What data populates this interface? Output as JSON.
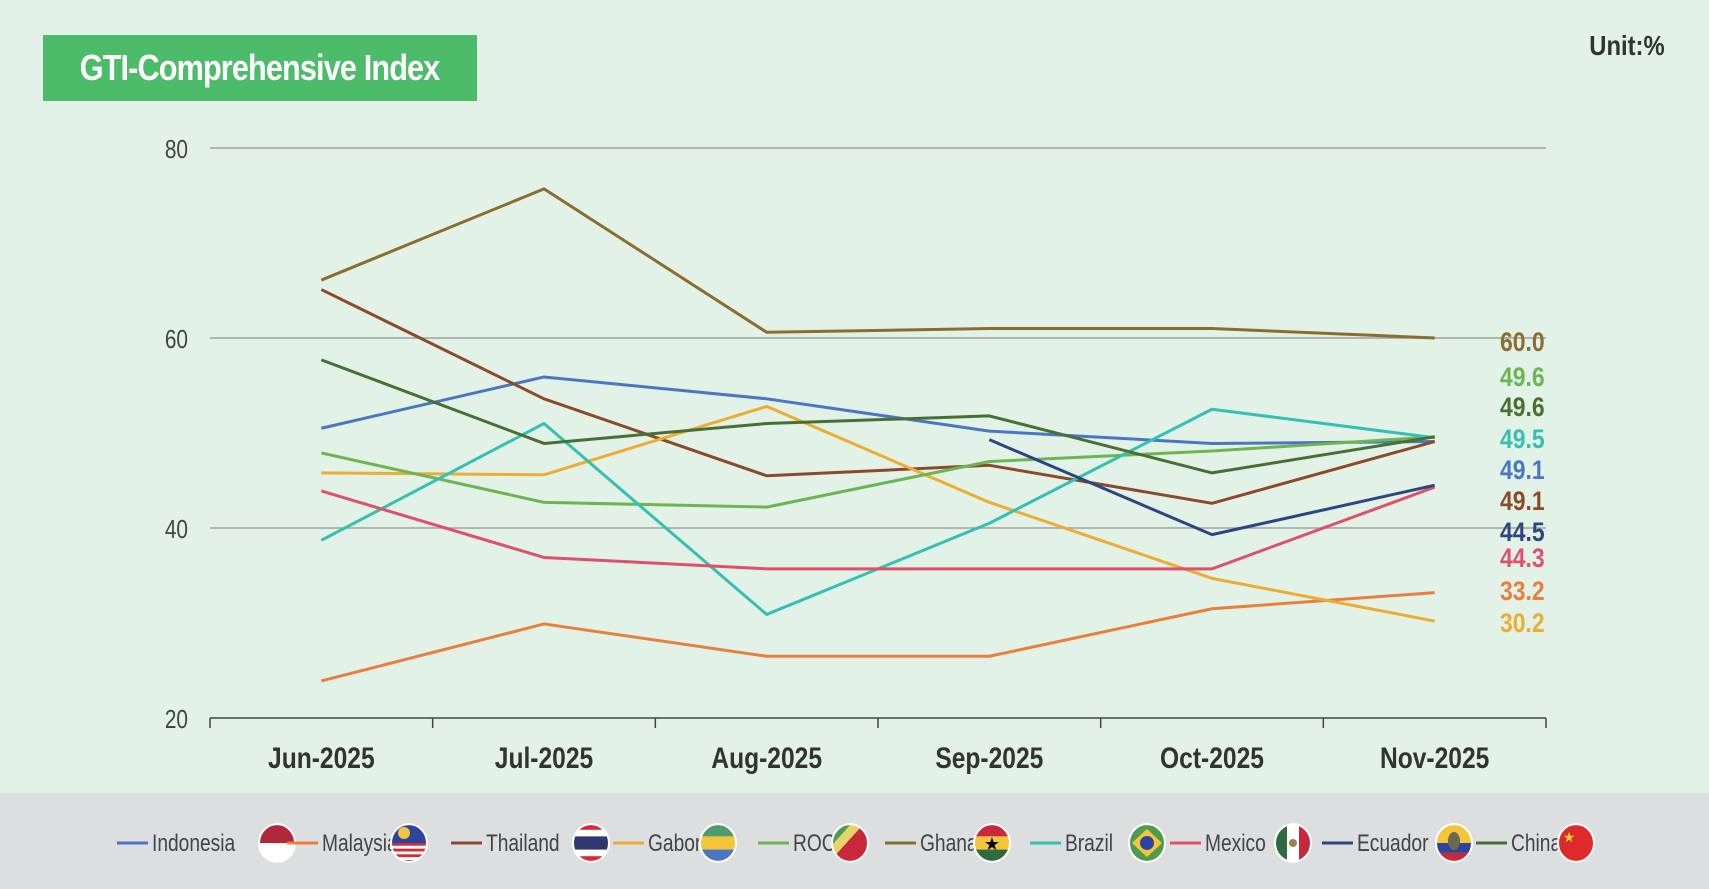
{
  "header": {
    "title": "GTI-Comprehensive Index",
    "unit": "Unit:%"
  },
  "chart_data": {
    "type": "line",
    "title": "GTI-Comprehensive Index",
    "ylabel": "Unit:%",
    "ylim": [
      20,
      80
    ],
    "yticks": [
      20,
      40,
      60,
      80
    ],
    "grid": true,
    "legend": "bottom",
    "categories": [
      "Jun-2025",
      "Jul-2025",
      "Aug-2025",
      "Sep-2025",
      "Oct-2025",
      "Nov-2025"
    ],
    "series": [
      {
        "name": "Indonesia",
        "color": "#4a76c4",
        "flag": "indonesia-flag",
        "values": [
          50.5,
          55.9,
          53.6,
          50.2,
          48.9,
          49.1
        ]
      },
      {
        "name": "Malaysia",
        "color": "#e97f3f",
        "flag": "malaysia-flag",
        "values": [
          23.9,
          29.9,
          26.5,
          26.5,
          31.5,
          33.2
        ]
      },
      {
        "name": "Thailand",
        "color": "#8b4a2b",
        "flag": "thailand-flag",
        "values": [
          65.1,
          53.6,
          45.5,
          46.6,
          42.6,
          49.1
        ]
      },
      {
        "name": "Gabon",
        "color": "#ebad33",
        "flag": "gabon-flag",
        "values": [
          45.8,
          45.6,
          52.8,
          42.7,
          34.7,
          30.2
        ]
      },
      {
        "name": "ROC",
        "color": "#6db553",
        "flag": "congo-flag",
        "values": [
          47.9,
          42.7,
          42.2,
          47.0,
          48.1,
          49.6
        ]
      },
      {
        "name": "Ghana",
        "color": "#8a6e30",
        "flag": "ghana-flag",
        "values": [
          66.1,
          75.7,
          60.6,
          61.0,
          61.0,
          60.0
        ]
      },
      {
        "name": "Brazil",
        "color": "#36bfb3",
        "flag": "brazil-flag",
        "values": [
          38.7,
          51.0,
          30.9,
          40.5,
          52.5,
          49.5
        ]
      },
      {
        "name": "Mexico",
        "color": "#e0506a",
        "flag": "mexico-flag",
        "values": [
          43.9,
          36.9,
          35.7,
          35.7,
          35.7,
          44.3
        ]
      },
      {
        "name": "Ecuador",
        "color": "#2c4583",
        "flag": "ecuador-flag",
        "values": [
          null,
          null,
          null,
          49.3,
          39.3,
          44.5
        ]
      },
      {
        "name": "China",
        "color": "#4a6f35",
        "flag": "china-flag",
        "values": [
          57.7,
          48.9,
          51.0,
          51.8,
          45.8,
          49.6
        ]
      }
    ],
    "end_labels": [
      {
        "text": "60.0",
        "series": "Ghana"
      },
      {
        "text": "49.6",
        "series": "ROC"
      },
      {
        "text": "49.6",
        "series": "China"
      },
      {
        "text": "49.5",
        "series": "Brazil"
      },
      {
        "text": "49.1",
        "series": "Indonesia"
      },
      {
        "text": "49.1",
        "series": "Thailand"
      },
      {
        "text": "44.5",
        "series": "Ecuador"
      },
      {
        "text": "44.3",
        "series": "Mexico"
      },
      {
        "text": "33.2",
        "series": "Malaysia"
      },
      {
        "text": "30.2",
        "series": "Gabon"
      }
    ]
  }
}
